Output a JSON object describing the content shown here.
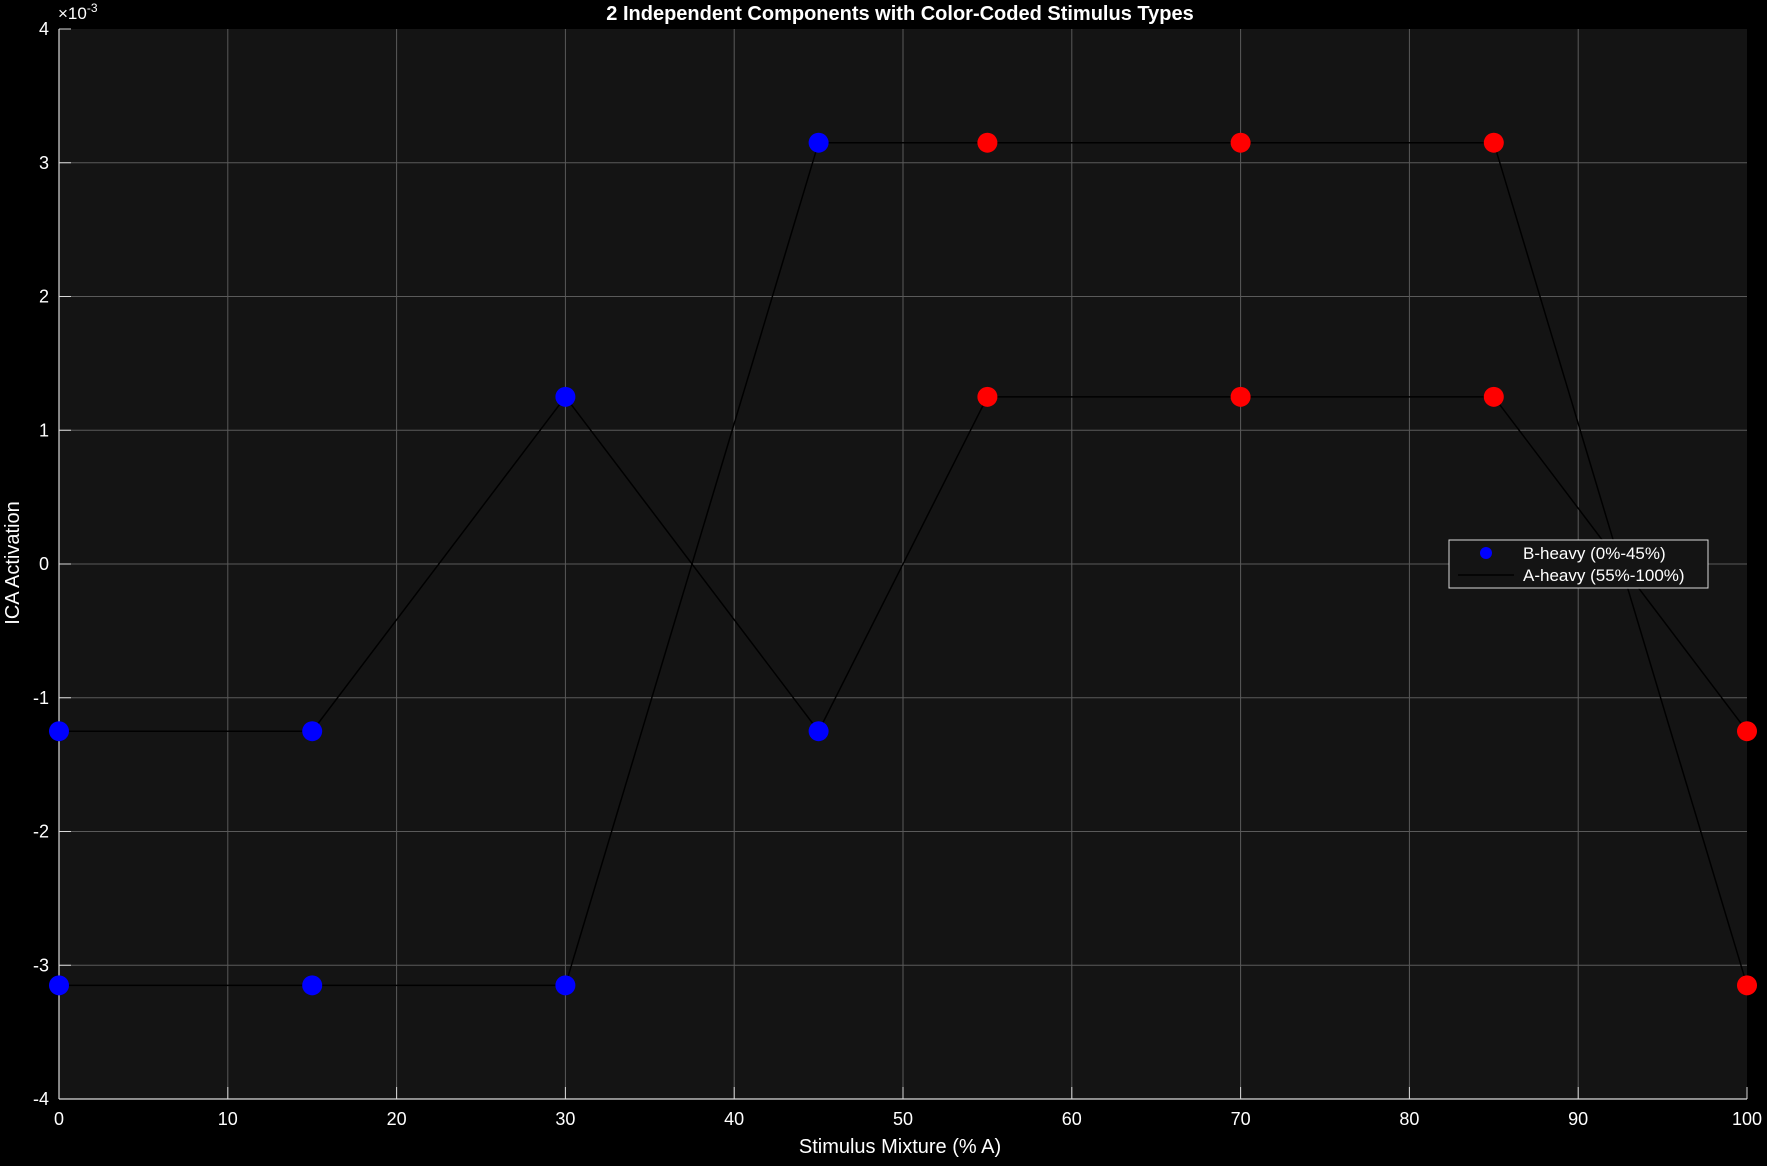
{
  "chart_data": {
    "type": "line",
    "title": "2 Independent Components with Color-Coded Stimulus Types",
    "xlabel": "Stimulus Mixture (% A)",
    "ylabel": "ICA Activation",
    "y_exponent_base": "×10",
    "y_exponent_power": "-3",
    "xlim": [
      0,
      100
    ],
    "ylim": [
      -4,
      4
    ],
    "x_ticks": [
      0,
      10,
      20,
      30,
      40,
      50,
      60,
      70,
      80,
      90,
      100
    ],
    "y_ticks": [
      -4,
      -3,
      -2,
      -1,
      0,
      1,
      2,
      3,
      4
    ],
    "x_tick_labels": [
      "0",
      "10",
      "20",
      "30",
      "40",
      "50",
      "60",
      "70",
      "80",
      "90",
      "100"
    ],
    "y_tick_labels": [
      "-4",
      "-3",
      "-2",
      "-1",
      "0",
      "1",
      "2",
      "3",
      "4"
    ],
    "grid": true,
    "legend_position": "right-middle",
    "x": [
      0,
      15,
      30,
      45,
      55,
      70,
      85,
      100
    ],
    "point_groups": [
      "B-heavy",
      "B-heavy",
      "B-heavy",
      "B-heavy",
      "A-heavy",
      "A-heavy",
      "A-heavy",
      "A-heavy"
    ],
    "series": [
      {
        "values": [
          -1.25,
          -1.25,
          1.25,
          -1.25,
          1.25,
          1.25,
          1.25,
          -1.25
        ]
      },
      {
        "values": [
          -3.15,
          -3.15,
          -3.15,
          3.15,
          3.15,
          3.15,
          3.15,
          -3.15
        ]
      }
    ],
    "legend": [
      {
        "label": "B-heavy (0%-45%)",
        "marker": "dot",
        "color": "#0000ff"
      },
      {
        "label": "A-heavy (55%-100%)",
        "marker": "line",
        "color": "#000000"
      }
    ],
    "colors": {
      "background": "#000000",
      "axes_background": "#141414",
      "b_heavy": "#0000ff",
      "a_heavy": "#ff0000",
      "line": "#000000",
      "grid": "#5a5a5a",
      "axis": "#d9d9d9",
      "text": "#ffffff"
    }
  }
}
